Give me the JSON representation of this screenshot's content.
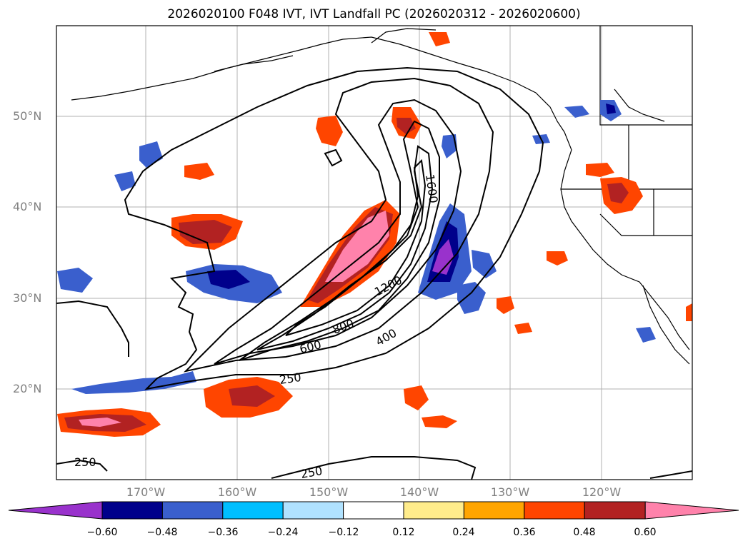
{
  "title": "2026020100 F048 IVT, IVT Landfall PC (2026020312 - 2026020600)",
  "lon_labels": [
    "170°W",
    "160°W",
    "150°W",
    "140°W",
    "130°W",
    "120°W"
  ],
  "lat_labels": [
    "50°N",
    "40°N",
    "30°N",
    "20°N"
  ],
  "contour_labels": [
    "1600",
    "1200",
    "800",
    "600",
    "400",
    "250",
    "250",
    "250"
  ],
  "colorbar": {
    "colors": [
      "#9932cc",
      "#00008b",
      "#3a5fcd",
      "#00bfff",
      "#b0e2ff",
      "#ffffff",
      "#ffec8b",
      "#ffa500",
      "#ff4500",
      "#b22222",
      "#ff82ab"
    ],
    "ticks": [
      "−0.60",
      "−0.48",
      "−0.36",
      "−0.24",
      "−0.12",
      "0.12",
      "0.24",
      "0.36",
      "0.48",
      "0.60"
    ]
  }
}
